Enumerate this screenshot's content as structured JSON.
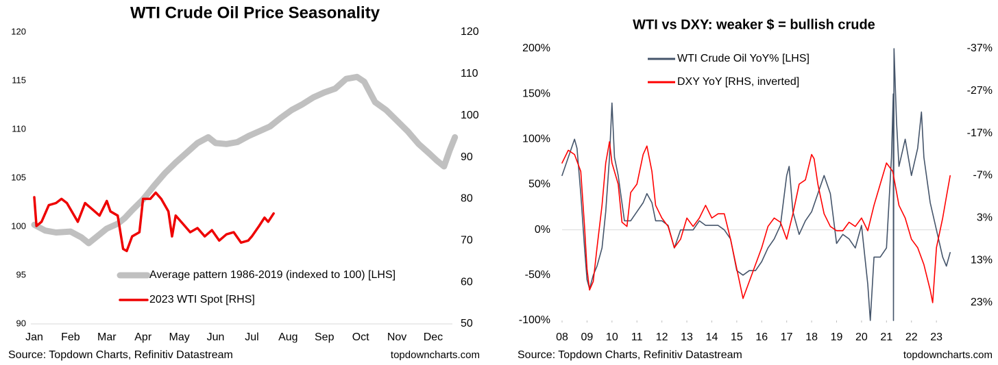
{
  "chart_data": [
    {
      "type": "line",
      "title": "WTI Crude Oil Price Seasonality",
      "xlim": [
        0,
        11.6
      ],
      "xticks": [
        {
          "value": 0,
          "label": "Jan"
        },
        {
          "value": 1,
          "label": "Feb"
        },
        {
          "value": 2,
          "label": "Mar"
        },
        {
          "value": 3,
          "label": "Apr"
        },
        {
          "value": 4,
          "label": "May"
        },
        {
          "value": 5,
          "label": "Jun"
        },
        {
          "value": 6,
          "label": "Jul"
        },
        {
          "value": 7,
          "label": "Aug"
        },
        {
          "value": 8,
          "label": "Sep"
        },
        {
          "value": 9,
          "label": "Oct"
        },
        {
          "value": 10,
          "label": "Nov"
        },
        {
          "value": 11,
          "label": "Dec"
        }
      ],
      "ylim": [
        90,
        120
      ],
      "yticks": [
        90,
        95,
        100,
        105,
        110,
        115,
        120
      ],
      "y2lim": [
        50,
        120
      ],
      "y2ticks": [
        50,
        60,
        70,
        80,
        90,
        100,
        110,
        120
      ],
      "series": [
        {
          "name": "Average pattern 1986-2019 (indexed to 100) [LHS]",
          "color": "#c0c0c0",
          "x": [
            0,
            0.3,
            0.6,
            1.0,
            1.3,
            1.5,
            1.8,
            2.0,
            2.3,
            2.5,
            2.7,
            3.0,
            3.3,
            3.6,
            3.9,
            4.2,
            4.5,
            4.8,
            5.0,
            5.3,
            5.6,
            5.9,
            6.2,
            6.5,
            6.8,
            7.1,
            7.4,
            7.7,
            8.0,
            8.3,
            8.6,
            8.9,
            9.1,
            9.4,
            9.7,
            10.0,
            10.3,
            10.6,
            10.9,
            11.1,
            11.3,
            11.45,
            11.6
          ],
          "values": [
            100.2,
            99.6,
            99.4,
            99.5,
            98.9,
            98.3,
            99.2,
            99.8,
            100.3,
            100.9,
            101.7,
            102.8,
            104.2,
            105.5,
            106.6,
            107.6,
            108.6,
            109.2,
            108.6,
            108.5,
            108.7,
            109.3,
            109.8,
            110.3,
            111.2,
            112.0,
            112.6,
            113.3,
            113.8,
            114.2,
            115.2,
            115.4,
            114.9,
            112.8,
            112.0,
            110.9,
            109.8,
            108.5,
            107.5,
            106.8,
            106.2,
            107.8,
            109.2
          ]
        },
        {
          "name": "2023 WTI Spot [RHS]",
          "color": "#ee0000",
          "axis": "y2",
          "x": [
            0,
            0.06,
            0.2,
            0.4,
            0.6,
            0.75,
            0.9,
            1.0,
            1.2,
            1.4,
            1.6,
            1.8,
            2.0,
            2.1,
            2.3,
            2.45,
            2.55,
            2.7,
            2.9,
            3.0,
            3.2,
            3.35,
            3.5,
            3.7,
            3.8,
            3.9,
            4.1,
            4.3,
            4.5,
            4.7,
            4.9,
            5.1,
            5.3,
            5.5,
            5.7,
            5.9,
            6.0,
            6.2,
            6.35,
            6.45,
            6.6
          ],
          "values": [
            80.4,
            73.5,
            74.5,
            78.5,
            79,
            80,
            79,
            77.5,
            74.5,
            79,
            77.5,
            76,
            79.5,
            77,
            76,
            68,
            67.5,
            71,
            72,
            80,
            80,
            81.5,
            80,
            77,
            71,
            76,
            74,
            72,
            73,
            71,
            72.5,
            70,
            71.5,
            72,
            69.5,
            70,
            71,
            73.5,
            75.5,
            74.5,
            76.5
          ]
        }
      ],
      "source": "Source: Topdown Charts, Refinitiv Datastream",
      "watermark": "topdowncharts.com"
    },
    {
      "type": "line",
      "title": "WTI vs DXY: weaker $ = bullish crude",
      "xlim": [
        2008,
        2023.6
      ],
      "xticks": [
        {
          "value": 2008,
          "label": "08"
        },
        {
          "value": 2009,
          "label": "09"
        },
        {
          "value": 2010,
          "label": "10"
        },
        {
          "value": 2011,
          "label": "11"
        },
        {
          "value": 2012,
          "label": "12"
        },
        {
          "value": 2013,
          "label": "13"
        },
        {
          "value": 2014,
          "label": "14"
        },
        {
          "value": 2015,
          "label": "15"
        },
        {
          "value": 2016,
          "label": "16"
        },
        {
          "value": 2017,
          "label": "17"
        },
        {
          "value": 2018,
          "label": "18"
        },
        {
          "value": 2019,
          "label": "19"
        },
        {
          "value": 2020,
          "label": "20"
        },
        {
          "value": 2021,
          "label": "21"
        },
        {
          "value": 2022,
          "label": "22"
        },
        {
          "value": 2023,
          "label": "23"
        }
      ],
      "ylim": [
        -100,
        200
      ],
      "yticks": [
        {
          "value": -100,
          "label": "-100%"
        },
        {
          "value": -50,
          "label": "-50%"
        },
        {
          "value": 0,
          "label": "0%"
        },
        {
          "value": 50,
          "label": "50%"
        },
        {
          "value": 100,
          "label": "100%"
        },
        {
          "value": 150,
          "label": "150%"
        },
        {
          "value": 200,
          "label": "200%"
        }
      ],
      "y2lim": [
        -37,
        27.2
      ],
      "y2_inverted": true,
      "y2ticks": [
        {
          "value": -37,
          "label": "-37%"
        },
        {
          "value": -27,
          "label": "-27%"
        },
        {
          "value": -17,
          "label": "-17%"
        },
        {
          "value": -7,
          "label": "-7%"
        },
        {
          "value": 3,
          "label": "3%"
        },
        {
          "value": 13,
          "label": "13%"
        },
        {
          "value": 23,
          "label": "23%"
        }
      ],
      "zero_line": true,
      "series": [
        {
          "name": "WTI Crude Oil YoY% [LHS]",
          "color": "#44546a",
          "x": [
            2008.0,
            2008.25,
            2008.5,
            2008.6,
            2008.75,
            2008.9,
            2009.0,
            2009.1,
            2009.25,
            2009.4,
            2009.6,
            2009.75,
            2009.9,
            2010.0,
            2010.1,
            2010.25,
            2010.5,
            2010.75,
            2011.0,
            2011.25,
            2011.4,
            2011.6,
            2011.75,
            2012.0,
            2012.25,
            2012.5,
            2012.75,
            2013.0,
            2013.25,
            2013.5,
            2013.75,
            2014.0,
            2014.25,
            2014.5,
            2014.75,
            2015.0,
            2015.25,
            2015.5,
            2015.75,
            2016.0,
            2016.25,
            2016.5,
            2016.75,
            2017.0,
            2017.1,
            2017.25,
            2017.5,
            2017.75,
            2018.0,
            2018.25,
            2018.5,
            2018.75,
            2019.0,
            2019.25,
            2019.5,
            2019.75,
            2020.0,
            2020.25,
            2020.35,
            2020.5,
            2020.75,
            2021.0,
            2021.2,
            2021.27,
            2021.28,
            2021.3,
            2021.4,
            2021.5,
            2021.75,
            2022.0,
            2022.25,
            2022.4,
            2022.5,
            2022.75,
            2023.0,
            2023.25,
            2023.4,
            2023.55
          ],
          "values": [
            60,
            80,
            100,
            90,
            40,
            -20,
            -55,
            -65,
            -50,
            -40,
            -20,
            20,
            80,
            140,
            80,
            60,
            10,
            10,
            20,
            30,
            40,
            30,
            10,
            10,
            5,
            -20,
            0,
            0,
            0,
            10,
            5,
            5,
            5,
            0,
            -10,
            -45,
            -50,
            -45,
            -45,
            -35,
            -20,
            -10,
            5,
            60,
            70,
            20,
            -5,
            10,
            20,
            40,
            60,
            40,
            -15,
            -5,
            -10,
            -20,
            5,
            -60,
            -100,
            -30,
            -30,
            -20,
            80,
            150,
            -100,
            200,
            120,
            70,
            100,
            60,
            90,
            130,
            80,
            30,
            0,
            -30,
            -40,
            -25
          ]
        },
        {
          "name": "DXY YoY [RHS, inverted]",
          "color": "#ff0000",
          "axis": "y2",
          "x": [
            2008.0,
            2008.25,
            2008.5,
            2008.75,
            2008.9,
            2009.0,
            2009.1,
            2009.25,
            2009.4,
            2009.6,
            2009.75,
            2009.9,
            2010.0,
            2010.25,
            2010.4,
            2010.6,
            2010.75,
            2011.0,
            2011.25,
            2011.4,
            2011.6,
            2011.75,
            2012.0,
            2012.25,
            2012.5,
            2012.75,
            2013.0,
            2013.25,
            2013.5,
            2013.75,
            2014.0,
            2014.25,
            2014.5,
            2014.75,
            2015.0,
            2015.25,
            2015.5,
            2015.75,
            2016.0,
            2016.25,
            2016.5,
            2016.75,
            2017.0,
            2017.25,
            2017.5,
            2017.75,
            2018.0,
            2018.1,
            2018.25,
            2018.5,
            2018.75,
            2019.0,
            2019.25,
            2019.5,
            2019.75,
            2020.0,
            2020.25,
            2020.5,
            2020.75,
            2021.0,
            2021.25,
            2021.5,
            2021.75,
            2022.0,
            2022.25,
            2022.5,
            2022.75,
            2022.85,
            2023.0,
            2023.25,
            2023.4,
            2023.55
          ],
          "values": [
            -10,
            -13,
            -12,
            -8,
            5,
            15,
            20,
            18,
            10,
            0,
            -10,
            -15,
            -10,
            -5,
            4,
            5,
            -3,
            -5,
            -12,
            -14,
            -8,
            0,
            3,
            5,
            10,
            8,
            3,
            5,
            3,
            0,
            3,
            2,
            2,
            8,
            15,
            22,
            18,
            14,
            10,
            5,
            3,
            4,
            8,
            2,
            -5,
            -6,
            -12,
            -11,
            -5,
            2,
            5,
            6,
            6,
            4,
            5,
            3,
            6,
            0,
            -5,
            -10,
            -8,
            0,
            3,
            8,
            10,
            14,
            20,
            23,
            10,
            3,
            -2,
            -7
          ]
        }
      ],
      "source": "Source: Topdown Charts, Refinitiv Datastream",
      "watermark": "topdowncharts.com"
    }
  ]
}
